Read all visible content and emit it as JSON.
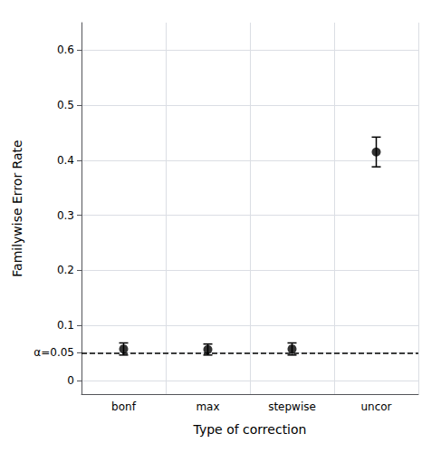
{
  "chart_data": {
    "type": "scatter",
    "xlabel": "Type of correction",
    "ylabel": "Familywise Error Rate",
    "categories": [
      "bonf",
      "max",
      "stepwise",
      "uncor"
    ],
    "values": [
      0.057,
      0.056,
      0.057,
      0.415
    ],
    "error_lower": [
      0.011,
      0.01,
      0.011,
      0.027
    ],
    "error_upper": [
      0.011,
      0.01,
      0.011,
      0.027
    ],
    "color": "#000000",
    "marker": "circle",
    "reference_line": {
      "value": 0.05,
      "line_style": "dashed",
      "color": "#000000"
    },
    "ylim": [
      -0.025,
      0.65
    ],
    "yticks": [
      0,
      {
        "value": 0.05,
        "label": "α=0.05"
      },
      0.1,
      0.2,
      0.3,
      0.4,
      0.5,
      0.6
    ],
    "grid": true
  }
}
